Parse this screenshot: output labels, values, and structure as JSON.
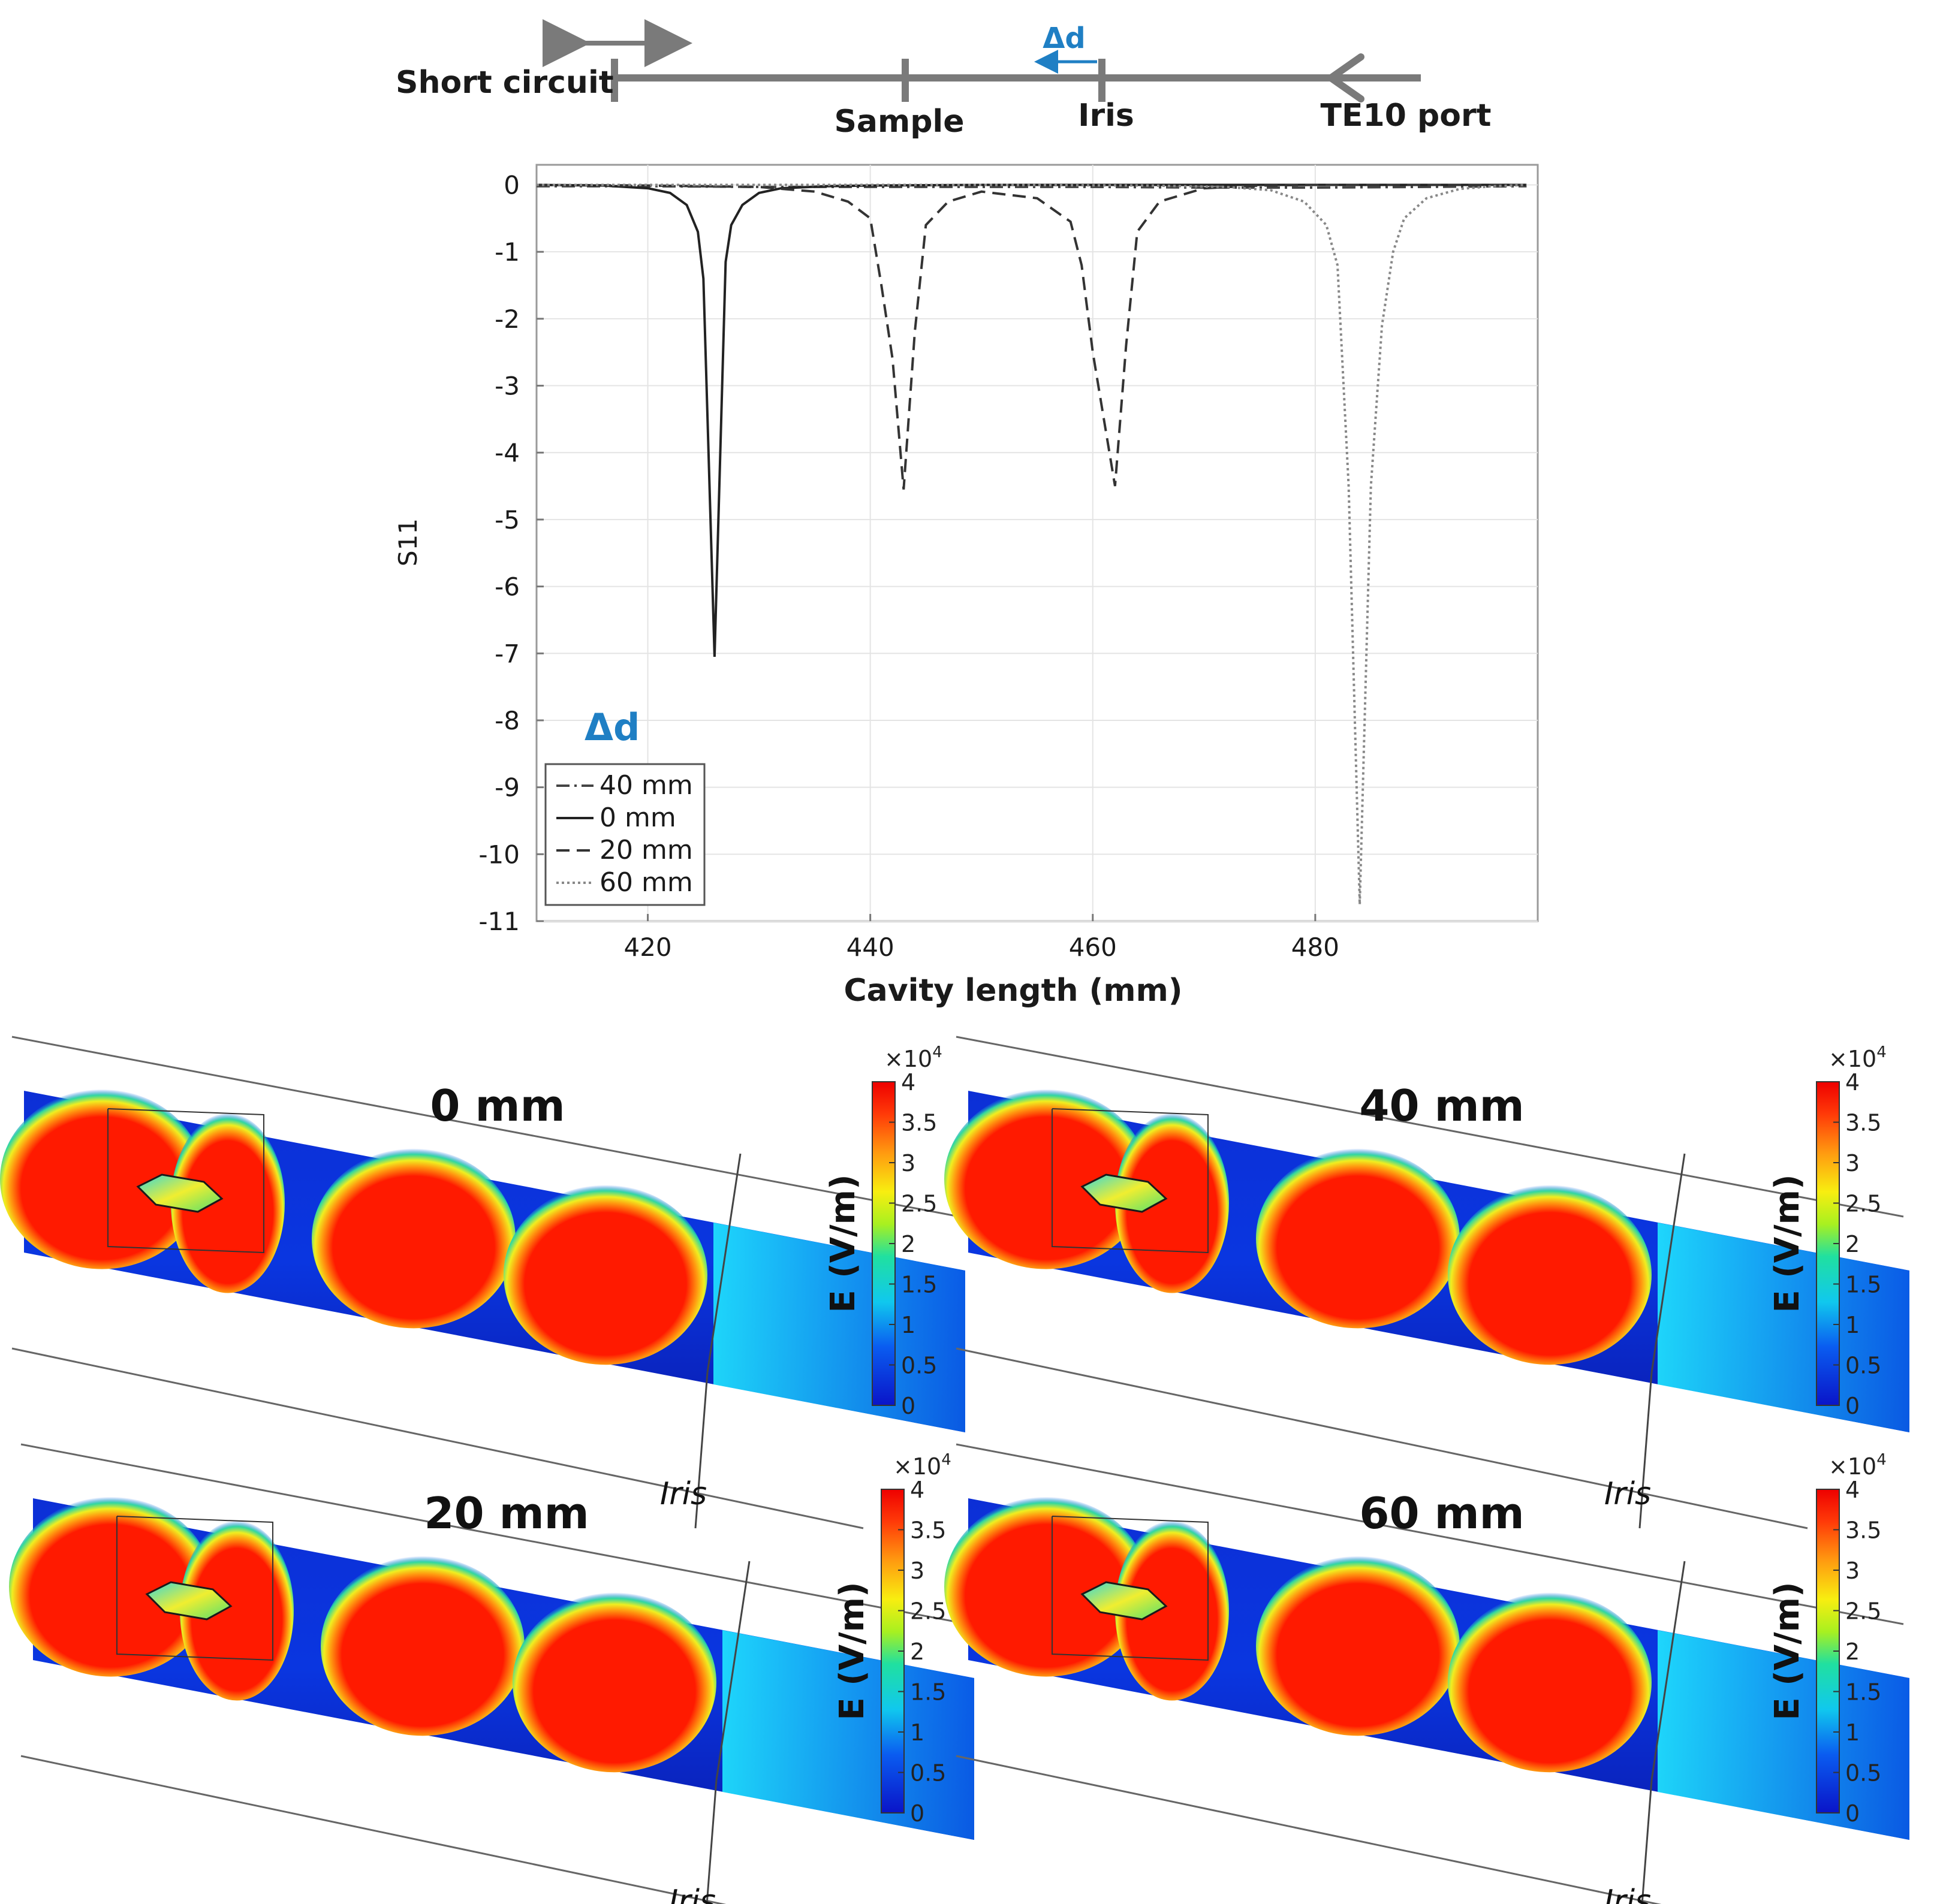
{
  "colors": {
    "axis": "#777777",
    "grid": "#e4e4e4",
    "schematic": "#7a7a7a",
    "accent_blue": "#1f7fc4",
    "field_low": "#0a2ad0",
    "field_high": "#ff1a00"
  },
  "schematic": {
    "short_circuit": "Short circuit",
    "sample": "Sample",
    "iris": "Iris",
    "port": "TE10 port",
    "delta_label": "Δd"
  },
  "chart_data": {
    "type": "line",
    "title": "",
    "xlabel": "Cavity length (mm)",
    "ylabel": "S11",
    "xlim": [
      410,
      500
    ],
    "ylim": [
      -11,
      0.3
    ],
    "xticks": [
      420,
      440,
      460,
      480
    ],
    "xtick_labels": [
      "420",
      "440",
      "460",
      "480"
    ],
    "yticks": [
      0,
      -1,
      -2,
      -3,
      -4,
      -5,
      -6,
      -7,
      -8,
      -9,
      -10,
      -11
    ],
    "ytick_labels": [
      "0",
      "-1",
      "-2",
      "-3",
      "-4",
      "-5",
      "-6",
      "-7",
      "-8",
      "-9",
      "-10",
      "-11"
    ],
    "grid": true,
    "legend_title": "Δd",
    "legend_position": "bottom-left",
    "series": [
      {
        "name": "40 mm",
        "style": "dashdot",
        "x": [
          410,
          420,
          430,
          440,
          450,
          460,
          470,
          480,
          490,
          499
        ],
        "y": [
          -0.02,
          -0.02,
          -0.03,
          -0.03,
          -0.03,
          -0.03,
          -0.04,
          -0.04,
          -0.03,
          -0.02
        ]
      },
      {
        "name": "0 mm",
        "style": "solid",
        "x": [
          410,
          416,
          420,
          422,
          423.5,
          424.5,
          425,
          426,
          427,
          427.5,
          428.5,
          430,
          432,
          436,
          440,
          450,
          460,
          499
        ],
        "y": [
          0,
          -0.01,
          -0.05,
          -0.12,
          -0.3,
          -0.7,
          -1.4,
          -7.05,
          -1.15,
          -0.6,
          -0.3,
          -0.12,
          -0.05,
          -0.02,
          -0.01,
          0,
          0,
          0
        ]
      },
      {
        "name": "20 mm",
        "style": "dashed",
        "x": [
          410,
          420,
          430,
          435,
          438,
          440,
          441,
          442,
          443,
          444,
          445,
          447,
          450,
          455,
          458,
          459,
          460,
          461,
          462,
          463,
          464,
          466,
          470,
          475,
          480,
          499
        ],
        "y": [
          0,
          -0.01,
          -0.03,
          -0.1,
          -0.25,
          -0.5,
          -1.5,
          -2.6,
          -4.55,
          -2.2,
          -0.6,
          -0.25,
          -0.1,
          -0.2,
          -0.55,
          -1.2,
          -2.5,
          -3.5,
          -4.5,
          -2.4,
          -0.7,
          -0.25,
          -0.05,
          -0.01,
          0,
          0
        ]
      },
      {
        "name": "60 mm",
        "style": "dotted",
        "x": [
          410,
          430,
          450,
          465,
          472,
          476,
          479,
          481,
          482,
          483,
          484,
          485,
          486,
          487,
          488,
          490,
          493,
          496,
          499
        ],
        "y": [
          0,
          0,
          0,
          -0.01,
          -0.03,
          -0.08,
          -0.25,
          -0.6,
          -1.2,
          -4.5,
          -10.75,
          -4.5,
          -2.1,
          -1.0,
          -0.5,
          -0.2,
          -0.06,
          -0.02,
          0
        ]
      }
    ]
  },
  "field_panels": [
    {
      "label": "0 mm",
      "iris_label": "Iris"
    },
    {
      "label": "40 mm",
      "iris_label": "Iris"
    },
    {
      "label": "20 mm",
      "iris_label": "Iris"
    },
    {
      "label": "60 mm",
      "iris_label": "Iris"
    }
  ],
  "colorbar": {
    "title": "E (V/m)",
    "exponent_base": "×10",
    "exponent_power": "4",
    "ticks": [
      "0",
      "0.5",
      "1",
      "1.5",
      "2",
      "2.5",
      "3",
      "3.5",
      "4"
    ]
  }
}
